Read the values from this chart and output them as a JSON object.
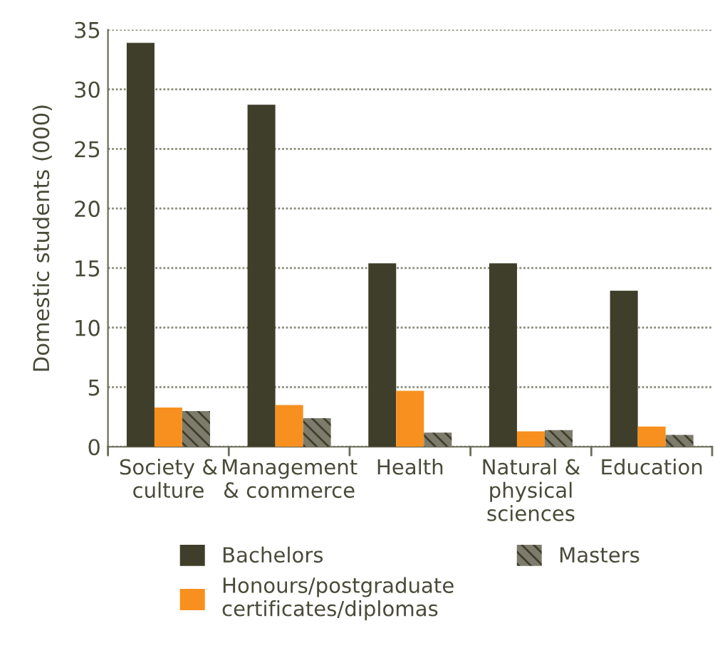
{
  "chart_data": {
    "type": "bar",
    "ylabel": "Domestic students (000)",
    "categories": [
      "Society &\nculture",
      "Management\n& commerce",
      "Health",
      "Natural &\nphysical\nsciences",
      "Education"
    ],
    "series": [
      {
        "name": "Bachelors",
        "color": "#3f3e2a",
        "values": [
          33.9,
          28.7,
          15.4,
          15.4,
          13.1
        ]
      },
      {
        "name": "Honours/postgraduate\ncertificates/diplomas",
        "color": "#f7901e",
        "values": [
          3.3,
          3.5,
          4.7,
          1.3,
          1.7
        ]
      },
      {
        "name": "Masters",
        "color": "#7d7c6c",
        "values": [
          3.0,
          2.4,
          1.2,
          1.4,
          1.0
        ]
      }
    ],
    "ylim": [
      0,
      35
    ],
    "yticks": [
      0,
      5,
      10,
      15,
      20,
      25,
      30,
      35
    ],
    "grid": "y",
    "legend": "bottom"
  }
}
